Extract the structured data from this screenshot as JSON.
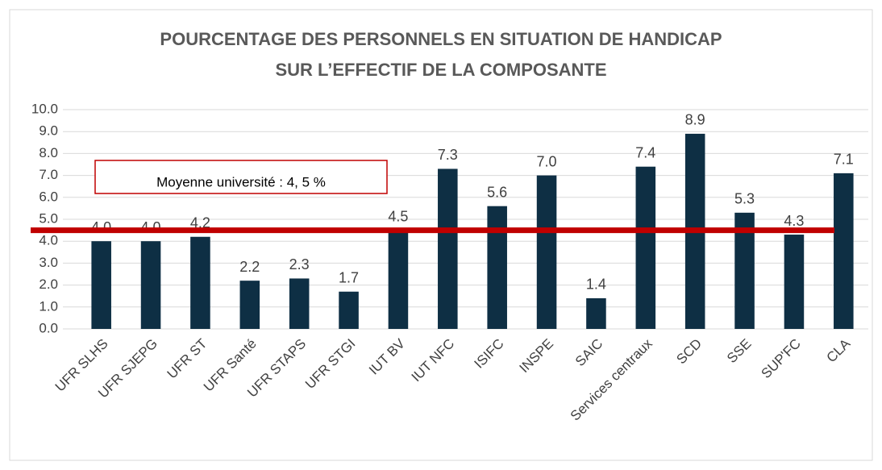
{
  "chart_data": {
    "type": "bar",
    "title_lines": [
      "POURCENTAGE DES PERSONNELS EN SITUATION DE HANDICAP",
      "SUR L’EFFECTIF DE LA COMPOSANTE"
    ],
    "categories": [
      "UFR SLHS",
      "UFR SJEPG",
      "UFR ST",
      "UFR Santé",
      "UFR STAPS",
      "UFR STGI",
      "IUT BV",
      "IUT NFC",
      "ISIFC",
      "INSPE",
      "SAIC",
      "Services centraux",
      "SCD",
      "SSE",
      "SUP'FC",
      "CLA"
    ],
    "values": [
      4.0,
      4.0,
      4.2,
      2.2,
      2.3,
      1.7,
      4.5,
      7.3,
      5.6,
      7.0,
      1.4,
      7.4,
      8.9,
      5.3,
      4.3,
      7.1
    ],
    "value_labels": [
      "4.0",
      "4.0",
      "4.2",
      "2.2",
      "2.3",
      "1.7",
      "4.5",
      "7.3",
      "5.6",
      "7.0",
      "1.4",
      "7.4",
      "8.9",
      "5.3",
      "4.3",
      "7.1"
    ],
    "color": "#0e2f44",
    "ylim": [
      0,
      10
    ],
    "yticks": [
      {
        "value": 0,
        "label": "0.0"
      },
      {
        "value": 1,
        "label": "1.0"
      },
      {
        "value": 2,
        "label": "2.0"
      },
      {
        "value": 3,
        "label": "3.0"
      },
      {
        "value": 4,
        "label": "4.0"
      },
      {
        "value": 5,
        "label": "5.0"
      },
      {
        "value": 6,
        "label": "6.0"
      },
      {
        "value": 7,
        "label": "7.0"
      },
      {
        "value": 8,
        "label": "8.0"
      },
      {
        "value": 9,
        "label": "9.0"
      },
      {
        "value": 10,
        "label": "10.0"
      }
    ],
    "grid": true,
    "reference_line": {
      "value": 4.5,
      "label": "Moyenne université : 4, 5 %",
      "color": "#c00000"
    }
  }
}
